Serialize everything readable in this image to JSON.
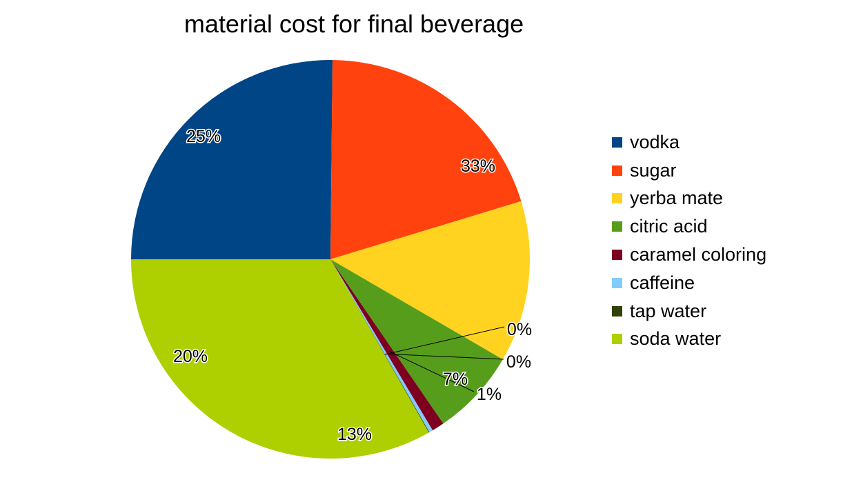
{
  "chart_data": {
    "type": "pie",
    "title": "material cost for final beverage",
    "legend_position": "right",
    "slices": [
      {
        "name": "vodka",
        "value": 25,
        "label": "25%",
        "color": "#004586"
      },
      {
        "name": "sugar",
        "value": 20,
        "label": "20%",
        "color": "#ff420e"
      },
      {
        "name": "yerba mate",
        "value": 13,
        "label": "13%",
        "color": "#ffd320"
      },
      {
        "name": "citric acid",
        "value": 7,
        "label": "7%",
        "color": "#579d1c"
      },
      {
        "name": "caramel coloring",
        "value": 1,
        "label": "1%",
        "color": "#7e0021"
      },
      {
        "name": "caffeine",
        "value": 0.3,
        "label": "0%",
        "color": "#83caff"
      },
      {
        "name": "tap water",
        "value": 0.05,
        "label": "0%",
        "color": "#314004"
      },
      {
        "name": "soda water",
        "value": 33,
        "label": "33%",
        "color": "#aecf00"
      }
    ]
  }
}
